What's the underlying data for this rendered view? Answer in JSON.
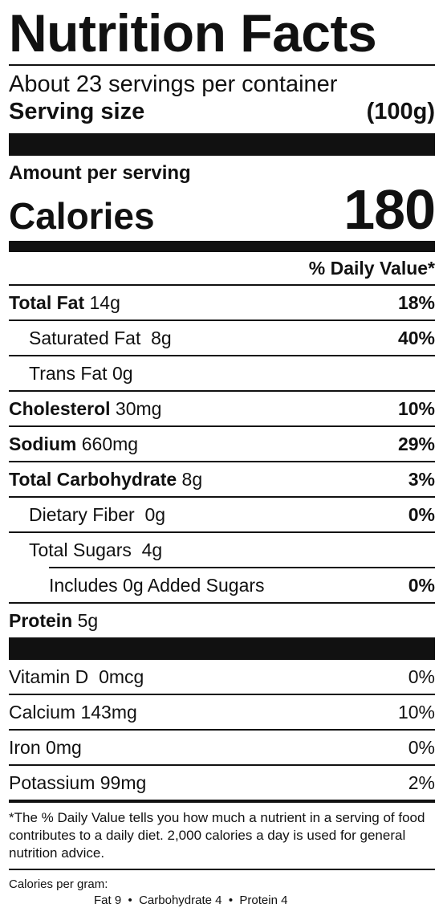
{
  "title": "Nutrition Facts",
  "servings_per_container": "About 23 servings per container",
  "serving_size": {
    "label": "Serving size",
    "value": "(100g)"
  },
  "amount_per_serving": "Amount per serving",
  "calories": {
    "label": "Calories",
    "value": "180"
  },
  "daily_value_header": "% Daily Value*",
  "nutrients": [
    {
      "name": "Total Fat",
      "amount": "14g",
      "dv": "18%"
    },
    {
      "name": "Saturated Fat",
      "amount": "8g",
      "dv": "40%"
    },
    {
      "name": "Trans Fat",
      "amount": "0g",
      "dv": ""
    },
    {
      "name": "Cholesterol",
      "amount": "30mg",
      "dv": "10%"
    },
    {
      "name": "Sodium",
      "amount": "660mg",
      "dv": "29%"
    },
    {
      "name": "Total Carbohydrate",
      "amount": "8g",
      "dv": "3%"
    },
    {
      "name": "Dietary Fiber",
      "amount": "0g",
      "dv": "0%"
    },
    {
      "name": "Total Sugars",
      "amount": "4g",
      "dv": ""
    },
    {
      "name": "Includes 0g Added Sugars",
      "amount": "",
      "dv": "0%"
    },
    {
      "name": "Protein",
      "amount": "5g",
      "dv": ""
    }
  ],
  "vitamins": [
    {
      "name": "Vitamin D",
      "amount": "0mcg",
      "dv": "0%"
    },
    {
      "name": "Calcium",
      "amount": "143mg",
      "dv": "10%"
    },
    {
      "name": "Iron",
      "amount": "0mg",
      "dv": "0%"
    },
    {
      "name": "Potassium",
      "amount": "99mg",
      "dv": "2%"
    }
  ],
  "footnote": "*The % Daily Value tells you how much a nutrient in a serving of food contributes to a daily diet. 2,000 calories a day is used for general nutrition advice.",
  "calories_per_gram": {
    "label": "Calories per gram:",
    "values": "Fat 9  •  Carbohydrate 4  •  Protein 4"
  }
}
